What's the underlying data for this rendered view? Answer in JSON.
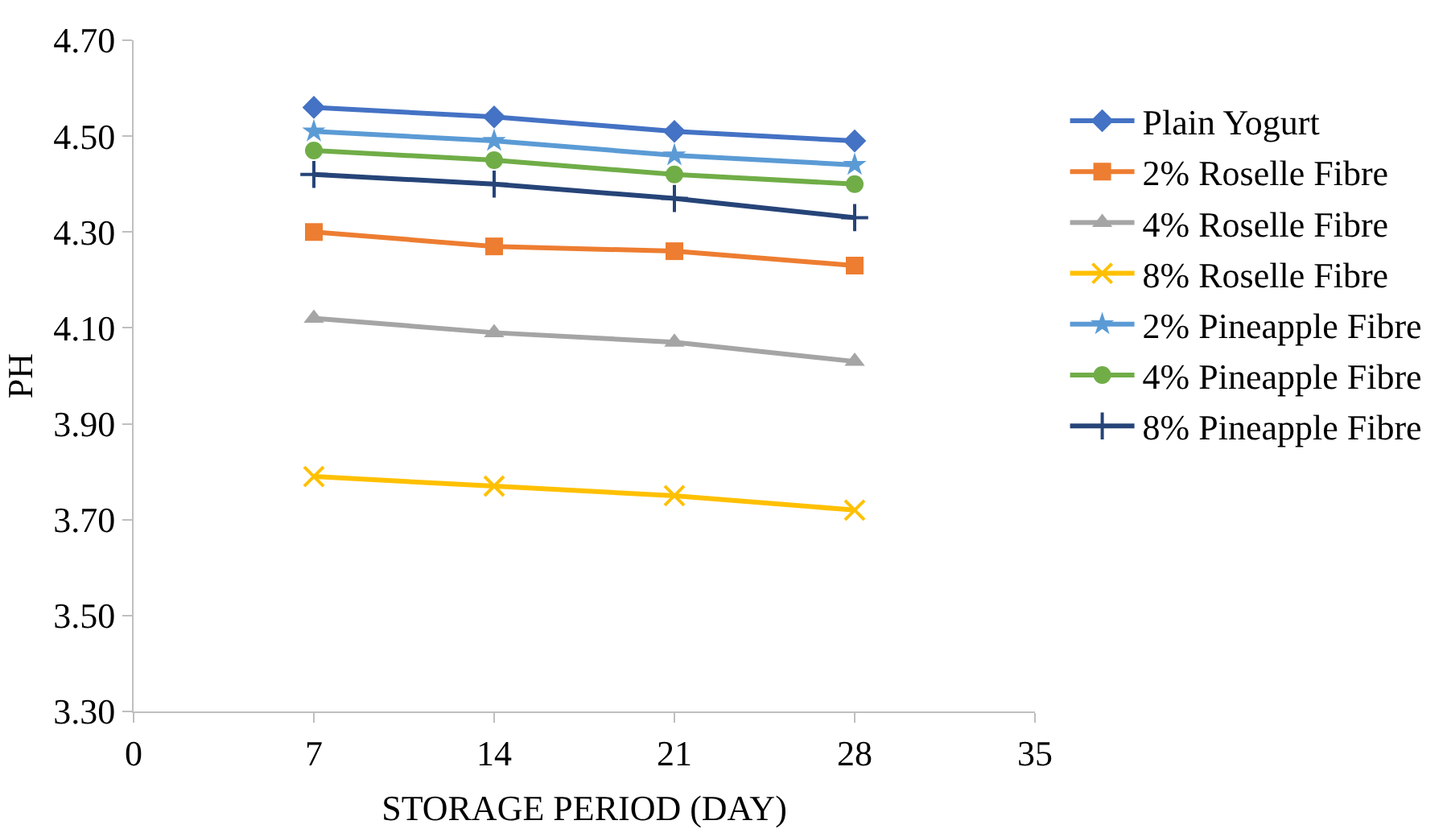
{
  "chart_data": {
    "type": "line",
    "xlabel": "STORAGE PERIOD (DAY)",
    "ylabel": "PH",
    "x": [
      7,
      14,
      21,
      28
    ],
    "xlim": [
      0,
      35
    ],
    "xticks": [
      0,
      7,
      14,
      21,
      28,
      35
    ],
    "ylim": [
      3.3,
      4.7
    ],
    "yticks": [
      {
        "value": 3.3,
        "label": "3.30"
      },
      {
        "value": 3.5,
        "label": "3.50"
      },
      {
        "value": 3.7,
        "label": "3.70"
      },
      {
        "value": 3.9,
        "label": "3.90"
      },
      {
        "value": 4.1,
        "label": "4.10"
      },
      {
        "value": 4.3,
        "label": "4.30"
      },
      {
        "value": 4.5,
        "label": "4.50"
      },
      {
        "value": 4.7,
        "label": "4.70"
      }
    ],
    "grid": false,
    "legend": "right",
    "line_style": "solid",
    "series": [
      {
        "name": "Plain Yogurt",
        "color": "#4472c4",
        "marker": "diamond",
        "values": [
          4.56,
          4.54,
          4.51,
          4.49
        ]
      },
      {
        "name": "2% Roselle Fibre",
        "color": "#ed7d31",
        "marker": "square",
        "values": [
          4.3,
          4.27,
          4.26,
          4.23
        ]
      },
      {
        "name": "4% Roselle Fibre",
        "color": "#a5a5a5",
        "marker": "triangle",
        "values": [
          4.12,
          4.09,
          4.07,
          4.03
        ]
      },
      {
        "name": "8% Roselle Fibre",
        "color": "#ffc000",
        "marker": "x",
        "values": [
          3.79,
          3.77,
          3.75,
          3.72
        ]
      },
      {
        "name": "2% Pineapple Fibre",
        "color": "#5b9bd5",
        "marker": "star",
        "values": [
          4.51,
          4.49,
          4.46,
          4.44
        ]
      },
      {
        "name": "4% Pineapple Fibre",
        "color": "#70ad47",
        "marker": "circle",
        "values": [
          4.47,
          4.45,
          4.42,
          4.4
        ]
      },
      {
        "name": "8% Pineapple Fibre",
        "color": "#264478",
        "marker": "cross",
        "values": [
          4.42,
          4.4,
          4.37,
          4.33
        ]
      }
    ]
  }
}
